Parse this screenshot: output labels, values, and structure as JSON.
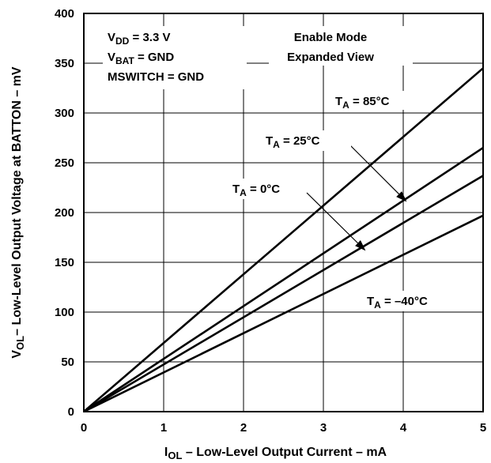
{
  "chart_data": {
    "type": "line",
    "xlabel": {
      "main": "I",
      "sub": "OL",
      "rest": " – Low-Level Output Current – mA"
    },
    "ylabel": {
      "main": "V",
      "sub": "OL",
      "rest": "– Low-Level Output Voltage at BATTON – mV"
    },
    "xlim": [
      0,
      5
    ],
    "ylim": [
      0,
      400
    ],
    "xticks": [
      0,
      1,
      2,
      3,
      4,
      5
    ],
    "yticks": [
      0,
      50,
      100,
      150,
      200,
      250,
      300,
      350,
      400
    ],
    "grid": true,
    "conditions": [
      {
        "main": "V",
        "sub": "DD",
        "rest": " = 3.3 V"
      },
      {
        "main": "V",
        "sub": "BAT",
        "rest": " = GND"
      },
      {
        "main": "MSWITCH = GND",
        "sub": "",
        "rest": ""
      }
    ],
    "mode_lines": [
      "Enable Mode",
      "Expanded View"
    ],
    "series": [
      {
        "name": "T_A = 85°C",
        "label": {
          "main": "T",
          "sub": "A",
          "rest": " = 85°C"
        },
        "x": [
          0,
          5
        ],
        "y": [
          0,
          345
        ]
      },
      {
        "name": "T_A = 25°C",
        "label": {
          "main": "T",
          "sub": "A",
          "rest": " = 25°C"
        },
        "x": [
          0,
          5
        ],
        "y": [
          0,
          265
        ]
      },
      {
        "name": "T_A = 0°C",
        "label": {
          "main": "T",
          "sub": "A",
          "rest": " = 0°C"
        },
        "x": [
          0,
          5
        ],
        "y": [
          0,
          237
        ]
      },
      {
        "name": "T_A = –40°C",
        "label": {
          "main": "T",
          "sub": "A",
          "rest": " = –40°C"
        },
        "x": [
          0,
          5
        ],
        "y": [
          0,
          197
        ]
      }
    ]
  }
}
